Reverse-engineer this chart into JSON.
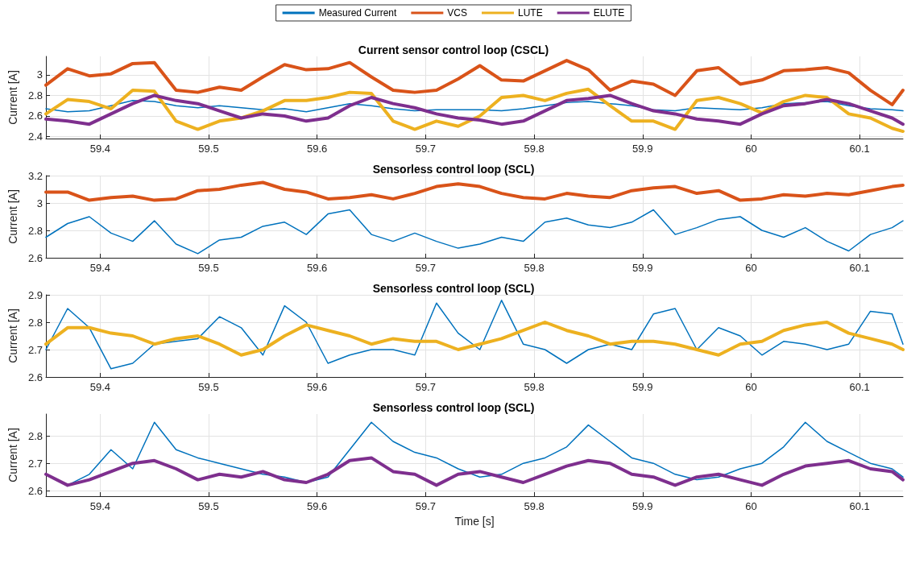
{
  "chart_data": [
    {
      "type": "line",
      "title": "Current sensor control loop (CSCL)",
      "ylabel": "Current [A]",
      "legend": "top",
      "grid": true,
      "marker": "none",
      "line_style": "solid",
      "x": [
        59.35,
        59.37,
        59.39,
        59.41,
        59.43,
        59.45,
        59.47,
        59.49,
        59.51,
        59.53,
        59.55,
        59.57,
        59.59,
        59.61,
        59.63,
        59.65,
        59.67,
        59.69,
        59.71,
        59.73,
        59.75,
        59.77,
        59.79,
        59.81,
        59.83,
        59.85,
        59.87,
        59.89,
        59.91,
        59.93,
        59.95,
        59.97,
        59.99,
        60.01,
        60.03,
        60.05,
        60.07,
        60.09,
        60.11,
        60.13,
        60.14
      ],
      "xlim": [
        59.35,
        60.14
      ],
      "xticks": [
        59.4,
        59.5,
        59.6,
        59.7,
        59.8,
        59.9,
        60,
        60.1
      ],
      "ylim": [
        2.38,
        3.18
      ],
      "yticks": [
        2.4,
        2.6,
        2.8,
        3
      ],
      "series": [
        {
          "name": "Measured Current",
          "color": "#0072bd",
          "values": [
            2.67,
            2.64,
            2.65,
            2.7,
            2.75,
            2.74,
            2.7,
            2.68,
            2.7,
            2.68,
            2.66,
            2.67,
            2.64,
            2.68,
            2.72,
            2.7,
            2.67,
            2.65,
            2.66,
            2.66,
            2.66,
            2.65,
            2.67,
            2.7,
            2.73,
            2.74,
            2.72,
            2.7,
            2.66,
            2.65,
            2.68,
            2.67,
            2.66,
            2.68,
            2.72,
            2.73,
            2.74,
            2.7,
            2.67,
            2.66,
            2.65
          ]
        },
        {
          "name": "VCS",
          "color": "#d95319",
          "values": [
            2.9,
            3.06,
            2.99,
            3.01,
            3.11,
            3.12,
            2.85,
            2.83,
            2.88,
            2.85,
            2.98,
            3.1,
            3.05,
            3.06,
            3.12,
            2.98,
            2.85,
            2.83,
            2.85,
            2.96,
            3.09,
            2.95,
            2.94,
            3.04,
            3.14,
            3.05,
            2.85,
            2.94,
            2.91,
            2.8,
            3.04,
            3.07,
            2.91,
            2.95,
            3.04,
            3.05,
            3.07,
            3.02,
            2.85,
            2.71,
            2.85
          ]
        },
        {
          "name": "LUTE",
          "color": "#edb120",
          "values": [
            2.62,
            2.76,
            2.74,
            2.67,
            2.85,
            2.84,
            2.55,
            2.47,
            2.55,
            2.58,
            2.65,
            2.75,
            2.75,
            2.78,
            2.83,
            2.82,
            2.55,
            2.47,
            2.55,
            2.5,
            2.6,
            2.78,
            2.8,
            2.75,
            2.82,
            2.86,
            2.7,
            2.55,
            2.55,
            2.47,
            2.75,
            2.78,
            2.72,
            2.63,
            2.74,
            2.8,
            2.78,
            2.62,
            2.58,
            2.48,
            2.45
          ]
        },
        {
          "name": "ELUTE",
          "color": "#7e2f8e",
          "values": [
            2.57,
            2.55,
            2.52,
            2.62,
            2.72,
            2.8,
            2.75,
            2.72,
            2.65,
            2.58,
            2.62,
            2.6,
            2.55,
            2.58,
            2.7,
            2.78,
            2.72,
            2.68,
            2.62,
            2.58,
            2.56,
            2.52,
            2.55,
            2.65,
            2.75,
            2.77,
            2.8,
            2.72,
            2.65,
            2.62,
            2.57,
            2.55,
            2.52,
            2.62,
            2.7,
            2.72,
            2.76,
            2.72,
            2.65,
            2.58,
            2.52
          ]
        }
      ]
    },
    {
      "type": "line",
      "title": "Sensorless control loop (SCL)",
      "ylabel": "Current [A]",
      "grid": true,
      "marker": "none",
      "line_style": "solid",
      "x": [
        59.35,
        59.37,
        59.39,
        59.41,
        59.43,
        59.45,
        59.47,
        59.49,
        59.51,
        59.53,
        59.55,
        59.57,
        59.59,
        59.61,
        59.63,
        59.65,
        59.67,
        59.69,
        59.71,
        59.73,
        59.75,
        59.77,
        59.79,
        59.81,
        59.83,
        59.85,
        59.87,
        59.89,
        59.91,
        59.93,
        59.95,
        59.97,
        59.99,
        60.01,
        60.03,
        60.05,
        60.07,
        60.09,
        60.11,
        60.13,
        60.14
      ],
      "xlim": [
        59.35,
        60.14
      ],
      "xticks": [
        59.4,
        59.5,
        59.6,
        59.7,
        59.8,
        59.9,
        60,
        60.1
      ],
      "ylim": [
        2.6,
        3.2
      ],
      "yticks": [
        2.6,
        2.8,
        3,
        3.2
      ],
      "series": [
        {
          "color": "#0072bd",
          "values": [
            2.75,
            2.85,
            2.9,
            2.78,
            2.72,
            2.87,
            2.7,
            2.63,
            2.73,
            2.75,
            2.83,
            2.86,
            2.77,
            2.92,
            2.95,
            2.77,
            2.72,
            2.78,
            2.72,
            2.67,
            2.7,
            2.75,
            2.72,
            2.86,
            2.89,
            2.84,
            2.82,
            2.86,
            2.95,
            2.77,
            2.82,
            2.88,
            2.9,
            2.8,
            2.75,
            2.82,
            2.72,
            2.65,
            2.77,
            2.82,
            2.87
          ]
        },
        {
          "color": "#d95319",
          "values": [
            3.08,
            3.08,
            3.02,
            3.04,
            3.05,
            3.02,
            3.03,
            3.09,
            3.1,
            3.13,
            3.15,
            3.1,
            3.08,
            3.03,
            3.04,
            3.06,
            3.03,
            3.07,
            3.12,
            3.14,
            3.12,
            3.07,
            3.04,
            3.03,
            3.07,
            3.05,
            3.04,
            3.09,
            3.11,
            3.12,
            3.07,
            3.09,
            3.02,
            3.03,
            3.06,
            3.05,
            3.07,
            3.06,
            3.09,
            3.12,
            3.13
          ]
        }
      ]
    },
    {
      "type": "line",
      "title": "Sensorless control loop (SCL)",
      "ylabel": "Current [A]",
      "grid": true,
      "marker": "none",
      "line_style": "solid",
      "x": [
        59.35,
        59.37,
        59.39,
        59.41,
        59.43,
        59.45,
        59.47,
        59.49,
        59.51,
        59.53,
        59.55,
        59.57,
        59.59,
        59.61,
        59.63,
        59.65,
        59.67,
        59.69,
        59.71,
        59.73,
        59.75,
        59.77,
        59.79,
        59.81,
        59.83,
        59.85,
        59.87,
        59.89,
        59.91,
        59.93,
        59.95,
        59.97,
        59.99,
        60.01,
        60.03,
        60.05,
        60.07,
        60.09,
        60.11,
        60.13,
        60.14
      ],
      "xlim": [
        59.35,
        60.14
      ],
      "xticks": [
        59.4,
        59.5,
        59.6,
        59.7,
        59.8,
        59.9,
        60,
        60.1
      ],
      "ylim": [
        2.6,
        2.9
      ],
      "yticks": [
        2.6,
        2.7,
        2.8,
        2.9
      ],
      "series": [
        {
          "color": "#0072bd",
          "values": [
            2.7,
            2.85,
            2.78,
            2.63,
            2.65,
            2.72,
            2.73,
            2.74,
            2.82,
            2.78,
            2.68,
            2.86,
            2.8,
            2.65,
            2.68,
            2.7,
            2.7,
            2.68,
            2.87,
            2.76,
            2.7,
            2.88,
            2.72,
            2.7,
            2.65,
            2.7,
            2.72,
            2.7,
            2.83,
            2.85,
            2.7,
            2.78,
            2.75,
            2.68,
            2.73,
            2.72,
            2.7,
            2.72,
            2.84,
            2.83,
            2.72
          ]
        },
        {
          "color": "#edb120",
          "values": [
            2.72,
            2.78,
            2.78,
            2.76,
            2.75,
            2.72,
            2.74,
            2.75,
            2.72,
            2.68,
            2.7,
            2.75,
            2.79,
            2.77,
            2.75,
            2.72,
            2.74,
            2.73,
            2.73,
            2.7,
            2.72,
            2.74,
            2.77,
            2.8,
            2.77,
            2.75,
            2.72,
            2.73,
            2.73,
            2.72,
            2.7,
            2.68,
            2.72,
            2.73,
            2.77,
            2.79,
            2.8,
            2.76,
            2.74,
            2.72,
            2.7
          ]
        }
      ]
    },
    {
      "type": "line",
      "title": "Sensorless control loop (SCL)",
      "xlabel": "Time [s]",
      "ylabel": "Current [A]",
      "grid": true,
      "marker": "none",
      "line_style": "solid",
      "x": [
        59.35,
        59.37,
        59.39,
        59.41,
        59.43,
        59.45,
        59.47,
        59.49,
        59.51,
        59.53,
        59.55,
        59.57,
        59.59,
        59.61,
        59.63,
        59.65,
        59.67,
        59.69,
        59.71,
        59.73,
        59.75,
        59.77,
        59.79,
        59.81,
        59.83,
        59.85,
        59.87,
        59.89,
        59.91,
        59.93,
        59.95,
        59.97,
        59.99,
        60.01,
        60.03,
        60.05,
        60.07,
        60.09,
        60.11,
        60.13,
        60.14
      ],
      "xlim": [
        59.35,
        60.14
      ],
      "xticks": [
        59.4,
        59.5,
        59.6,
        59.7,
        59.8,
        59.9,
        60,
        60.1
      ],
      "ylim": [
        2.58,
        2.88
      ],
      "yticks": [
        2.6,
        2.7,
        2.8
      ],
      "series": [
        {
          "color": "#0072bd",
          "values": [
            2.66,
            2.62,
            2.66,
            2.75,
            2.68,
            2.85,
            2.75,
            2.72,
            2.7,
            2.68,
            2.66,
            2.65,
            2.63,
            2.65,
            2.75,
            2.85,
            2.78,
            2.74,
            2.72,
            2.68,
            2.65,
            2.66,
            2.7,
            2.72,
            2.76,
            2.84,
            2.78,
            2.72,
            2.7,
            2.66,
            2.64,
            2.65,
            2.68,
            2.7,
            2.76,
            2.85,
            2.78,
            2.74,
            2.7,
            2.68,
            2.65
          ]
        },
        {
          "color": "#7e2f8e",
          "values": [
            2.66,
            2.62,
            2.64,
            2.67,
            2.7,
            2.71,
            2.68,
            2.64,
            2.66,
            2.65,
            2.67,
            2.64,
            2.63,
            2.66,
            2.71,
            2.72,
            2.67,
            2.66,
            2.62,
            2.66,
            2.67,
            2.65,
            2.63,
            2.66,
            2.69,
            2.71,
            2.7,
            2.66,
            2.65,
            2.62,
            2.65,
            2.66,
            2.64,
            2.62,
            2.66,
            2.69,
            2.7,
            2.71,
            2.68,
            2.67,
            2.64
          ]
        }
      ]
    }
  ]
}
